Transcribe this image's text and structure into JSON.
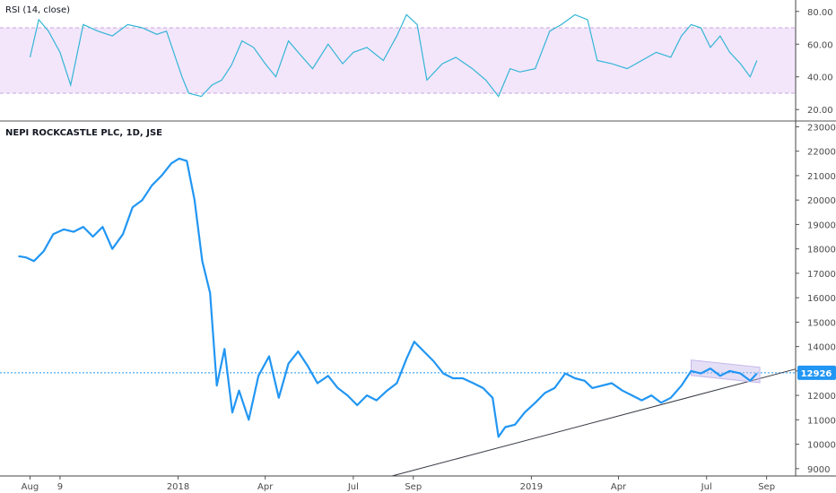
{
  "panels": {
    "rsi_title": "RSI (14, close)",
    "price_title": "NEPI ROCKCASTLE PLC, 1D, JSE",
    "last_price_label": "12926"
  },
  "colors": {
    "price_line": "#2196f3",
    "rsi_line": "#33b5d6",
    "rsi_band": "#f3e6fb",
    "rsi_band_edge": "#c9a4dc",
    "last_price_badge": "#2196f3",
    "trendline": "#363a45",
    "channel": "#c5b7ea"
  },
  "chart_data": [
    {
      "type": "line",
      "title": "RSI (14, close)",
      "y_ticks": [
        "80.00",
        "60.00",
        "40.00",
        "20.00"
      ],
      "ylim": [
        13,
        87
      ],
      "band": [
        30,
        70
      ],
      "x": [
        "2017-08-01",
        "2017-08-10",
        "2017-08-20",
        "2017-09-01",
        "2017-09-12",
        "2017-09-25",
        "2017-10-10",
        "2017-10-25",
        "2017-11-10",
        "2017-11-25",
        "2017-12-10",
        "2017-12-20",
        "2018-01-05",
        "2018-01-12",
        "2018-01-25",
        "2018-02-05",
        "2018-02-15",
        "2018-02-25",
        "2018-03-08",
        "2018-03-20",
        "2018-04-01",
        "2018-04-12",
        "2018-04-25",
        "2018-05-05",
        "2018-05-20",
        "2018-06-05",
        "2018-06-20",
        "2018-07-01",
        "2018-07-15",
        "2018-08-01",
        "2018-08-15",
        "2018-08-25",
        "2018-09-05",
        "2018-09-15",
        "2018-10-01",
        "2018-10-15",
        "2018-11-01",
        "2018-11-15",
        "2018-11-28",
        "2018-12-10",
        "2018-12-20",
        "2019-01-05",
        "2019-01-20",
        "2019-02-01",
        "2019-02-15",
        "2019-02-28",
        "2019-03-10",
        "2019-03-25",
        "2019-04-10",
        "2019-04-25",
        "2019-05-10",
        "2019-05-25",
        "2019-06-05",
        "2019-06-15",
        "2019-06-25",
        "2019-07-05",
        "2019-07-15",
        "2019-07-25",
        "2019-08-05",
        "2019-08-15",
        "2019-08-22"
      ],
      "series": [
        {
          "values": [
            52,
            75,
            68,
            55,
            35,
            72,
            68,
            65,
            72,
            70,
            66,
            68,
            40,
            30,
            28,
            35,
            38,
            47,
            62,
            58,
            48,
            40,
            62,
            55,
            45,
            60,
            48,
            55,
            58,
            50,
            65,
            78,
            72,
            38,
            48,
            52,
            45,
            38,
            28,
            45,
            43,
            45,
            68,
            72,
            78,
            75,
            50,
            48,
            45,
            50,
            55,
            52,
            65,
            72,
            70,
            58,
            65,
            55,
            48,
            40,
            50
          ]
        }
      ]
    },
    {
      "type": "line",
      "title": "NEPI ROCKCASTLE PLC, 1D, JSE",
      "y_ticks": [
        "23000",
        "22000",
        "21000",
        "20000",
        "19000",
        "18000",
        "17000",
        "16000",
        "15000",
        "14000",
        "13000",
        "12000",
        "11000",
        "10000",
        "9000"
      ],
      "ylim": [
        8700,
        23200
      ],
      "x_ticks": [
        "Aug",
        "9",
        "2018",
        "Apr",
        "Jul",
        "Sep",
        "2019",
        "Apr",
        "Jul",
        "Sep"
      ],
      "x": [
        "2017-07-20",
        "2017-07-28",
        "2017-08-05",
        "2017-08-15",
        "2017-08-25",
        "2017-09-05",
        "2017-09-15",
        "2017-09-25",
        "2017-10-05",
        "2017-10-15",
        "2017-10-25",
        "2017-11-05",
        "2017-11-15",
        "2017-11-25",
        "2017-12-05",
        "2017-12-15",
        "2017-12-25",
        "2018-01-02",
        "2018-01-10",
        "2018-01-18",
        "2018-01-26",
        "2018-02-03",
        "2018-02-10",
        "2018-02-18",
        "2018-02-26",
        "2018-03-05",
        "2018-03-15",
        "2018-03-25",
        "2018-04-05",
        "2018-04-15",
        "2018-04-25",
        "2018-05-05",
        "2018-05-15",
        "2018-05-25",
        "2018-06-05",
        "2018-06-15",
        "2018-06-25",
        "2018-07-05",
        "2018-07-15",
        "2018-07-25",
        "2018-08-05",
        "2018-08-15",
        "2018-08-25",
        "2018-09-02",
        "2018-09-12",
        "2018-09-22",
        "2018-10-02",
        "2018-10-12",
        "2018-10-22",
        "2018-11-02",
        "2018-11-12",
        "2018-11-22",
        "2018-11-28",
        "2018-12-05",
        "2018-12-15",
        "2018-12-25",
        "2019-01-05",
        "2019-01-15",
        "2019-01-25",
        "2019-02-05",
        "2019-02-15",
        "2019-02-25",
        "2019-03-05",
        "2019-03-15",
        "2019-03-25",
        "2019-04-05",
        "2019-04-15",
        "2019-04-25",
        "2019-05-05",
        "2019-05-15",
        "2019-05-25",
        "2019-06-05",
        "2019-06-15",
        "2019-06-25",
        "2019-07-05",
        "2019-07-15",
        "2019-07-25",
        "2019-08-05",
        "2019-08-15",
        "2019-08-22"
      ],
      "series": [
        {
          "values": [
            17700,
            17650,
            17500,
            17900,
            18600,
            18800,
            18700,
            18900,
            18500,
            18900,
            18000,
            18600,
            19700,
            20000,
            20600,
            21000,
            21500,
            21700,
            21600,
            20000,
            17500,
            16200,
            12400,
            13900,
            11300,
            12200,
            11000,
            12800,
            13600,
            11900,
            13300,
            13800,
            13200,
            12500,
            12800,
            12300,
            12000,
            11600,
            12000,
            11800,
            12200,
            12500,
            13500,
            14200,
            13800,
            13400,
            12900,
            12700,
            12700,
            12500,
            12300,
            11900,
            10300,
            10700,
            10800,
            11300,
            11700,
            12100,
            12300,
            12900,
            12700,
            12600,
            12300,
            12400,
            12500,
            12200,
            12000,
            11800,
            12000,
            11700,
            11900,
            12400,
            13000,
            12900,
            13100,
            12800,
            13000,
            12900,
            12600,
            12900
          ]
        }
      ],
      "last_value": 12926
    }
  ]
}
